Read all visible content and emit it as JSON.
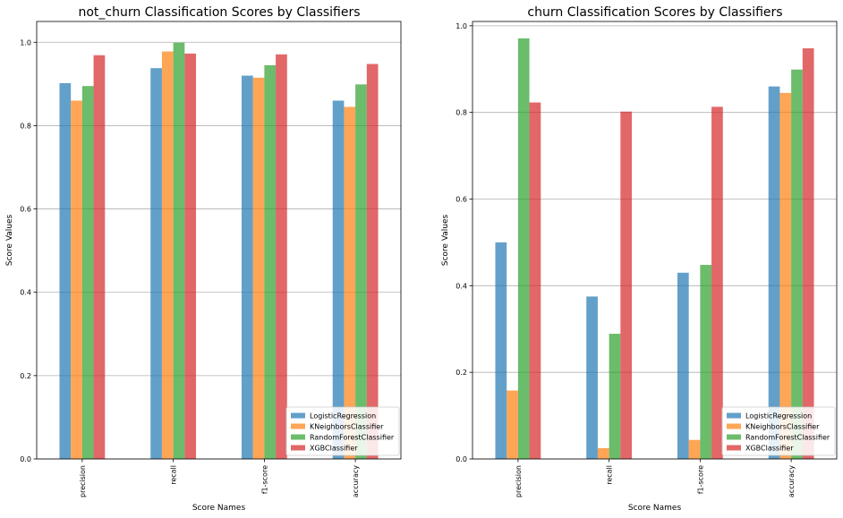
{
  "colors": {
    "LogisticRegression": "#1f77b4",
    "KNeighborsClassifier": "#ff7f0e",
    "RandomForestClassifier": "#2ca02c",
    "XGBClassifier": "#d62728",
    "grid": "#b0b0b0",
    "bar_alpha": 0.7
  },
  "chart_data": [
    {
      "type": "bar",
      "title": "not_churn Classification Scores by Classifiers",
      "xlabel": "Score Names",
      "ylabel": "Score Values",
      "categories": [
        "precision",
        "recall",
        "f1-score",
        "accuracy"
      ],
      "ylim": [
        0,
        1.05
      ],
      "yticks": [
        "0.0",
        "0.2",
        "0.4",
        "0.6",
        "0.8",
        "1.0"
      ],
      "grid": "y",
      "legend_position": "lower-right",
      "series": [
        {
          "name": "LogisticRegression",
          "values": [
            0.902,
            0.938,
            0.92,
            0.86
          ]
        },
        {
          "name": "KNeighborsClassifier",
          "values": [
            0.86,
            0.978,
            0.915,
            0.845
          ]
        },
        {
          "name": "RandomForestClassifier",
          "values": [
            0.895,
            0.999,
            0.945,
            0.899
          ]
        },
        {
          "name": "XGBClassifier",
          "values": [
            0.969,
            0.973,
            0.971,
            0.948
          ]
        }
      ]
    },
    {
      "type": "bar",
      "title": "churn Classification Scores by Classifiers",
      "xlabel": "Score Names",
      "ylabel": "Score Values",
      "categories": [
        "precision",
        "recall",
        "f1-score",
        "accuracy"
      ],
      "ylim": [
        0,
        1.01
      ],
      "yticks": [
        "0.0",
        "0.2",
        "0.4",
        "0.6",
        "0.8",
        "1.0"
      ],
      "grid": "y",
      "legend_position": "lower-right",
      "series": [
        {
          "name": "LogisticRegression",
          "values": [
            0.5,
            0.375,
            0.43,
            0.86
          ]
        },
        {
          "name": "KNeighborsClassifier",
          "values": [
            0.158,
            0.025,
            0.044,
            0.845
          ]
        },
        {
          "name": "RandomForestClassifier",
          "values": [
            0.971,
            0.289,
            0.448,
            0.899
          ]
        },
        {
          "name": "XGBClassifier",
          "values": [
            0.823,
            0.802,
            0.813,
            0.948
          ]
        }
      ]
    }
  ]
}
